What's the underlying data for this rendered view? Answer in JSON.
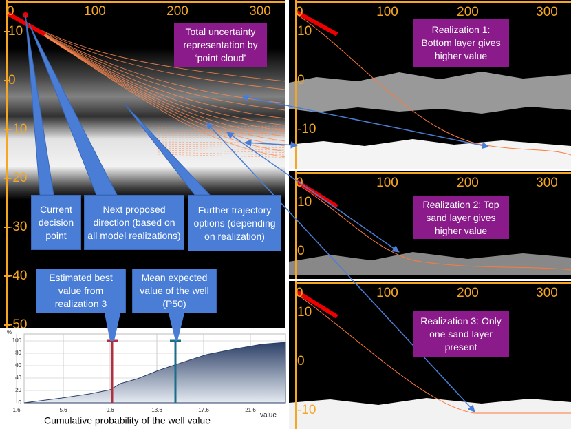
{
  "main_panel": {
    "x_ticks": [
      0,
      100,
      200,
      300
    ],
    "y_ticks": [
      10,
      0,
      -10,
      -20,
      -30,
      -40,
      -50
    ],
    "note": "Total uncertainty representation by ‘point cloud’"
  },
  "callouts": [
    "Current decision point",
    "Next proposed direction (based on all model realizations)",
    "Further trajectory options (depending on realization)",
    "Estimated best value from realization 3",
    "Mean expected value of the well (P50)"
  ],
  "realizations": [
    {
      "label": "Realization 1: Bottom layer gives higher value",
      "x_ticks": [
        0,
        100,
        200,
        300
      ],
      "y_ticks": [
        10,
        0,
        -10
      ]
    },
    {
      "label": "Realization 2: Top sand layer gives higher value",
      "x_ticks": [
        0,
        100,
        200,
        300
      ],
      "y_ticks": [
        10,
        0
      ]
    },
    {
      "label": "Realization 3: Only one sand layer present",
      "x_ticks": [
        0,
        100,
        200,
        300
      ],
      "y_ticks": [
        10,
        0,
        -10
      ]
    }
  ],
  "cdf_chart": {
    "y_axis_label": "%",
    "y_ticks": [
      0,
      20,
      40,
      60,
      80,
      100
    ],
    "x_ticks": [
      "1.6",
      "5.6",
      "9.6",
      "13.6",
      "17.6",
      "21.6"
    ],
    "x_axis_label": "value",
    "caption": "Cumulative probability of the well value"
  }
}
